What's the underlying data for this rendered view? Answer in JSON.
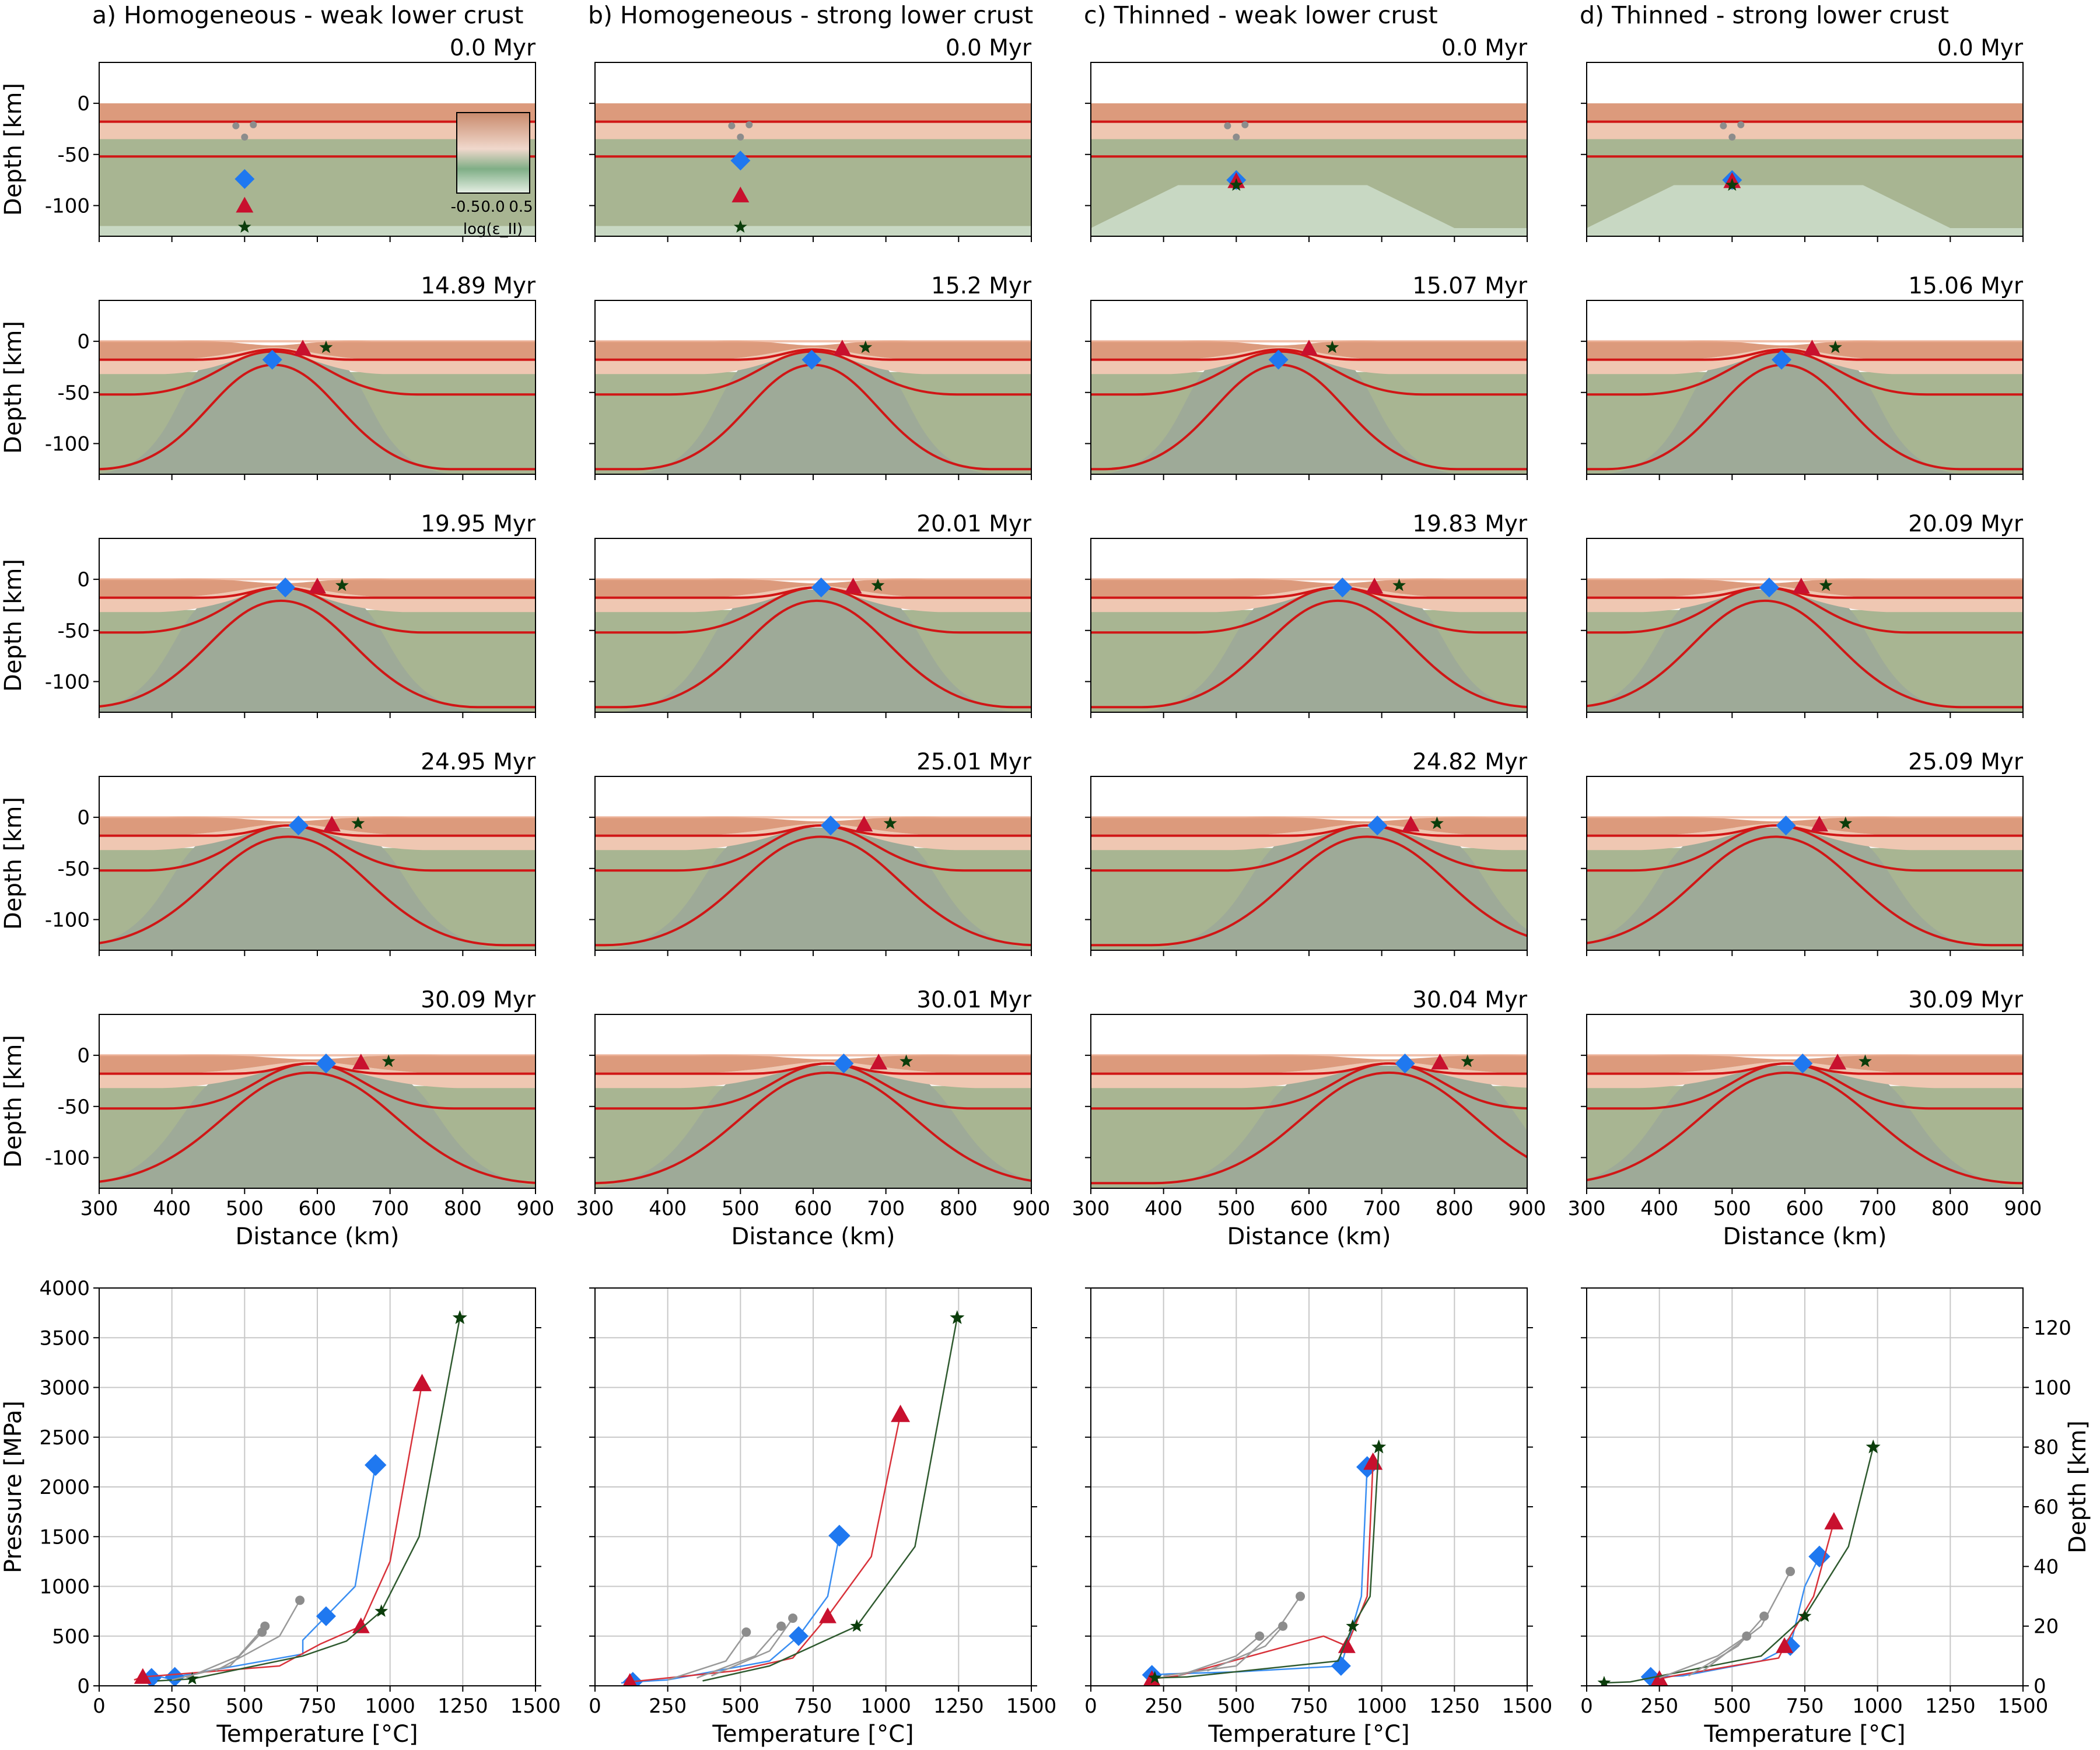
{
  "figure": {
    "columns": [
      {
        "title": "a) Homogeneous - weak lower crust",
        "thinned": false
      },
      {
        "title": "b) Homogeneous - strong lower crust",
        "thinned": false
      },
      {
        "title": "c) Thinned - weak lower crust",
        "thinned": true
      },
      {
        "title": "d) Thinned - strong lower crust",
        "thinned": true
      }
    ],
    "times": [
      [
        "0.0 Myr",
        "14.89 Myr",
        "19.95 Myr",
        "24.95 Myr",
        "30.09 Myr"
      ],
      [
        "0.0 Myr",
        "15.2 Myr",
        "20.01 Myr",
        "25.01 Myr",
        "30.01 Myr"
      ],
      [
        "0.0 Myr",
        "15.07 Myr",
        "19.83 Myr",
        "24.82 Myr",
        "30.04 Myr"
      ],
      [
        "0.0 Myr",
        "15.06 Myr",
        "20.09 Myr",
        "25.09 Myr",
        "30.09 Myr"
      ]
    ],
    "section_y_label": "Depth [km]",
    "section_x_label": "Distance (km)",
    "section_x_ticks": [
      300,
      400,
      500,
      600,
      700,
      800,
      900
    ],
    "section_y_ticks": [
      0,
      -50,
      -100
    ],
    "colorbar": {
      "ticks": [
        "-0.5",
        "0.0",
        "0.5"
      ],
      "label": "log(ε_II)"
    },
    "pt_x_label": "Temperature [°C]",
    "pt_y_label": "Pressure [MPa]",
    "pt_y2_label": "Depth [km]",
    "pt_x_ticks": [
      0,
      250,
      500,
      750,
      1000,
      1250,
      1500
    ],
    "pt_y_ticks": [
      0,
      500,
      1000,
      1500,
      2000,
      2500,
      3000,
      3500,
      4000
    ],
    "pt_y2_ticks": [
      0,
      20,
      40,
      60,
      80,
      100,
      120
    ],
    "colors": {
      "upper_crust": "#dc9a7c",
      "lower_crust": "#efc7b2",
      "mantle": "#a8b592",
      "asthenosphere": "#c8d8c3",
      "isotherm": "#d01616",
      "diamond": "#1f78f0",
      "triangle": "#c8102e",
      "star": "#0b3d0b",
      "gray": "#8c8c8c",
      "diamond_path": "#3a8ef2",
      "triangle_path": "#d8323a",
      "star_path": "#2f5a2f"
    }
  },
  "chart_data": {
    "type": "line",
    "x_label": "Temperature [°C]",
    "y_label": "Pressure [MPa]",
    "xlim": [
      0,
      1500
    ],
    "ylim": [
      0,
      4000
    ],
    "panels": [
      {
        "name": "a) Homogeneous - weak lower crust",
        "series": [
          {
            "marker": "diamond",
            "points": [
              [
                950,
                2220
              ],
              [
                880,
                1000
              ],
              [
                780,
                700
              ],
              [
                700,
                460
              ],
              [
                700,
                320
              ],
              [
                260,
                90
              ],
              [
                240,
                70
              ],
              [
                200,
                100
              ],
              [
                180,
                80
              ]
            ]
          },
          {
            "marker": "triangle",
            "points": [
              [
                1110,
                3040
              ],
              [
                1000,
                1250
              ],
              [
                900,
                600
              ],
              [
                760,
                420
              ],
              [
                620,
                200
              ],
              [
                150,
                90
              ],
              [
                120,
                60
              ]
            ]
          },
          {
            "marker": "star",
            "points": [
              [
                1240,
                3700
              ],
              [
                1100,
                1500
              ],
              [
                970,
                750
              ],
              [
                850,
                450
              ],
              [
                700,
                300
              ],
              [
                320,
                70
              ],
              [
                200,
                50
              ]
            ]
          },
          {
            "marker": "gray",
            "points": [
              [
                570,
                600
              ],
              [
                480,
                300
              ],
              [
                300,
                80
              ]
            ]
          },
          {
            "marker": "gray",
            "points": [
              [
                690,
                860
              ],
              [
                620,
                500
              ],
              [
                400,
                150
              ]
            ]
          },
          {
            "marker": "gray",
            "points": [
              [
                560,
                540
              ],
              [
                450,
                200
              ],
              [
                250,
                60
              ]
            ]
          }
        ]
      },
      {
        "name": "b) Homogeneous - strong lower crust",
        "series": [
          {
            "marker": "diamond",
            "points": [
              [
                840,
                1510
              ],
              [
                800,
                900
              ],
              [
                700,
                500
              ],
              [
                600,
                250
              ],
              [
                250,
                60
              ],
              [
                130,
                40
              ],
              [
                90,
                30
              ]
            ]
          },
          {
            "marker": "triangle",
            "points": [
              [
                1050,
                2730
              ],
              [
                950,
                1300
              ],
              [
                800,
                700
              ],
              [
                680,
                280
              ],
              [
                480,
                150
              ],
              [
                120,
                40
              ]
            ]
          },
          {
            "marker": "star",
            "points": [
              [
                1245,
                3700
              ],
              [
                1100,
                1400
              ],
              [
                900,
                600
              ],
              [
                600,
                200
              ],
              [
                370,
                50
              ]
            ]
          },
          {
            "marker": "gray",
            "points": [
              [
                680,
                680
              ],
              [
                600,
                350
              ],
              [
                400,
                100
              ]
            ]
          },
          {
            "marker": "gray",
            "points": [
              [
                640,
                600
              ],
              [
                550,
                300
              ],
              [
                350,
                80
              ]
            ]
          },
          {
            "marker": "gray",
            "points": [
              [
                520,
                540
              ],
              [
                450,
                250
              ],
              [
                250,
                60
              ]
            ]
          }
        ]
      },
      {
        "name": "c) Thinned - weak lower crust",
        "series": [
          {
            "marker": "diamond",
            "points": [
              [
                950,
                2200
              ],
              [
                930,
                900
              ],
              [
                860,
                200
              ],
              [
                500,
                140
              ],
              [
                270,
                120
              ],
              [
                210,
                110
              ]
            ]
          },
          {
            "marker": "triangle",
            "points": [
              [
                970,
                2250
              ],
              [
                950,
                900
              ],
              [
                880,
                400
              ],
              [
                800,
                500
              ],
              [
                300,
                100
              ],
              [
                210,
                70
              ]
            ]
          },
          {
            "marker": "star",
            "points": [
              [
                990,
                2400
              ],
              [
                960,
                900
              ],
              [
                900,
                600
              ],
              [
                850,
                250
              ],
              [
                330,
                90
              ],
              [
                220,
                80
              ]
            ]
          },
          {
            "marker": "gray",
            "points": [
              [
                720,
                900
              ],
              [
                650,
                600
              ],
              [
                500,
                200
              ],
              [
                250,
                100
              ]
            ]
          },
          {
            "marker": "gray",
            "points": [
              [
                660,
                600
              ],
              [
                600,
                400
              ],
              [
                400,
                150
              ]
            ]
          },
          {
            "marker": "gray",
            "points": [
              [
                580,
                500
              ],
              [
                500,
                300
              ],
              [
                300,
                100
              ]
            ]
          }
        ]
      },
      {
        "name": "d) Thinned - strong lower crust",
        "series": [
          {
            "marker": "diamond",
            "points": [
              [
                800,
                1300
              ],
              [
                750,
                1000
              ],
              [
                700,
                400
              ],
              [
                600,
                250
              ],
              [
                330,
                100
              ],
              [
                220,
                90
              ]
            ]
          },
          {
            "marker": "triangle",
            "points": [
              [
                850,
                1650
              ],
              [
                780,
                900
              ],
              [
                680,
                400
              ],
              [
                660,
                280
              ],
              [
                300,
                100
              ],
              [
                250,
                70
              ]
            ]
          },
          {
            "marker": "star",
            "points": [
              [
                985,
                2400
              ],
              [
                900,
                1400
              ],
              [
                750,
                700
              ],
              [
                600,
                300
              ],
              [
                150,
                40
              ],
              [
                60,
                30
              ]
            ]
          },
          {
            "marker": "gray",
            "points": [
              [
                700,
                1150
              ],
              [
                600,
                600
              ],
              [
                400,
                150
              ]
            ]
          },
          {
            "marker": "gray",
            "points": [
              [
                610,
                700
              ],
              [
                520,
                400
              ],
              [
                350,
                100
              ]
            ]
          },
          {
            "marker": "gray",
            "points": [
              [
                550,
                500
              ],
              [
                450,
                300
              ],
              [
                250,
                80
              ]
            ]
          }
        ]
      }
    ]
  }
}
